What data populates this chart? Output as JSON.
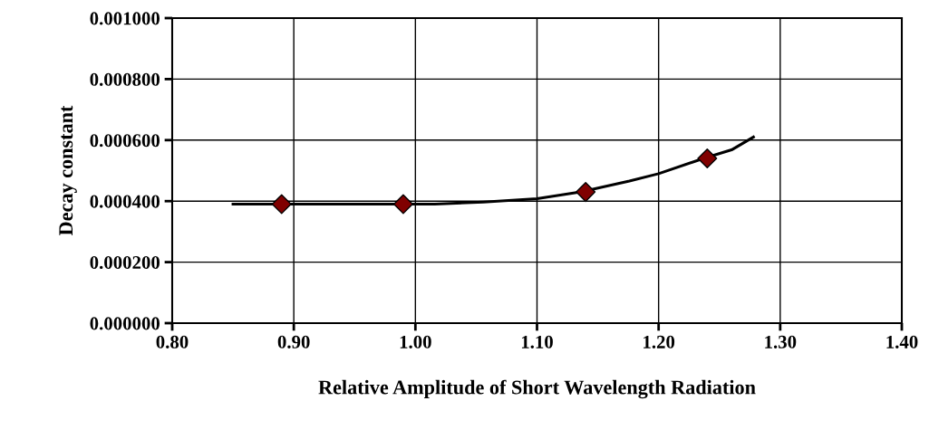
{
  "chart_data": {
    "type": "scatter",
    "xlabel": "Relative Amplitude of Short Wavelength Radiation",
    "ylabel": "Decay constant",
    "series": [
      {
        "type": "line",
        "color": "#000000",
        "marker": "none",
        "x": [
          0.85,
          1.016,
          1.056,
          1.1,
          1.136,
          1.176,
          1.2,
          1.237,
          1.26,
          1.278
        ],
        "values": [
          0.00039,
          0.00039,
          0.000397,
          0.000408,
          0.00043,
          0.000466,
          0.00049,
          0.00054,
          0.000568,
          0.00061
        ]
      },
      {
        "color": "#800000",
        "marker": "diamond",
        "x": [
          0.89,
          0.99,
          1.14,
          1.24
        ],
        "values": [
          0.00039,
          0.00039,
          0.00043,
          0.00054
        ]
      }
    ],
    "xlim": [
      0.8,
      1.4
    ],
    "xticks": [
      {
        "value": 0.8,
        "label": "0.80"
      },
      {
        "value": 0.9,
        "label": "0.90"
      },
      {
        "value": 1.0,
        "label": "1.00"
      },
      {
        "value": 1.1,
        "label": "1.10"
      },
      {
        "value": 1.2,
        "label": "1.20"
      },
      {
        "value": 1.3,
        "label": "1.30"
      },
      {
        "value": 1.4,
        "label": "1.40"
      }
    ],
    "ylim": [
      0,
      0.001
    ],
    "yticks": [
      {
        "value": 0,
        "label": "0.000000"
      },
      {
        "value": 0.0002,
        "label": "0.000200"
      },
      {
        "value": 0.0004,
        "label": "0.000400"
      },
      {
        "value": 0.0006,
        "label": "0.000600"
      },
      {
        "value": 0.0008,
        "label": "0.000800"
      },
      {
        "value": 0.001,
        "label": "0.001000"
      }
    ],
    "grid": true
  }
}
